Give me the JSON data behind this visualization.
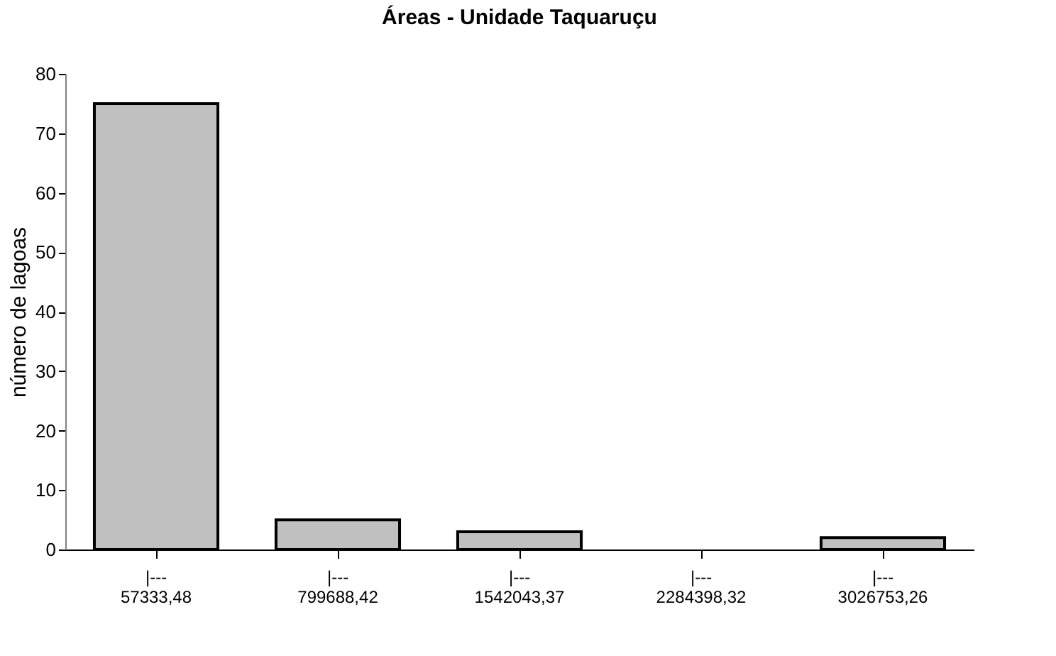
{
  "chart_data": {
    "type": "bar",
    "title": "Áreas - Unidade Taquaruçu",
    "ylabel": "número de lagoas",
    "categories": [
      "|---\n57333,48",
      "|---\n799688,42",
      "|---\n1542043,37",
      "|---\n2284398,32",
      "|---\n3026753,26"
    ],
    "values": [
      75,
      5,
      3,
      0,
      2
    ],
    "color": "#c0c0c0",
    "ylim": [
      0,
      80
    ],
    "yticks": [
      0,
      10,
      20,
      30,
      40,
      50,
      60,
      70,
      80
    ],
    "grid": false
  }
}
